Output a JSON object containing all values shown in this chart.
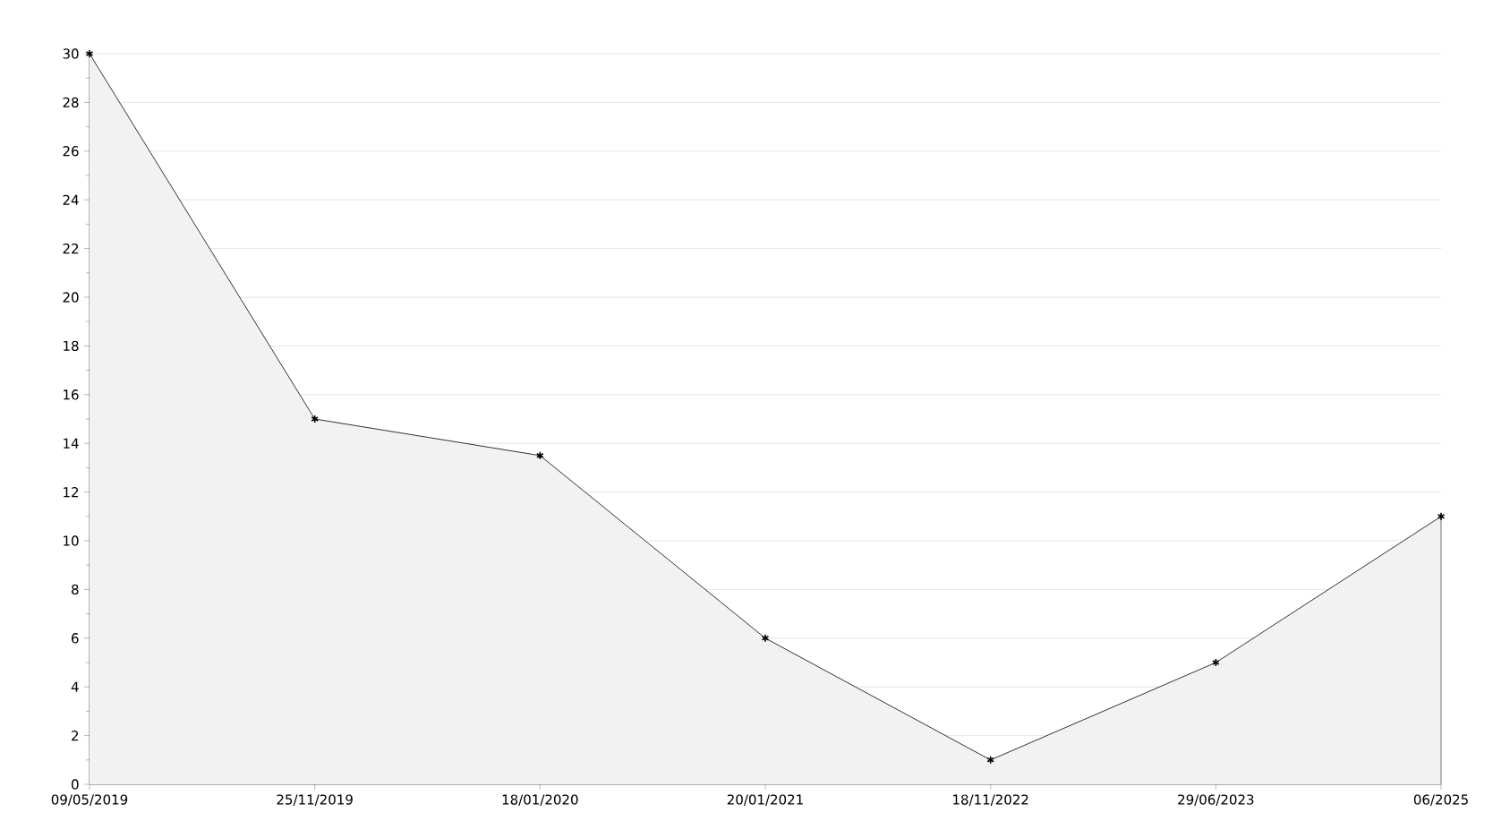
{
  "chart_data": {
    "type": "area",
    "categories": [
      "09/05/2019",
      "25/11/2019",
      "18/01/2020",
      "20/01/2021",
      "18/11/2022",
      "29/06/2023",
      "06/2025"
    ],
    "series": [
      {
        "color": "#000000",
        "values": [
          30,
          15,
          13.5,
          6,
          1,
          5,
          11
        ]
      }
    ],
    "ylim": [
      0,
      30
    ],
    "yticks": [
      0,
      2,
      4,
      6,
      8,
      10,
      12,
      14,
      16,
      18,
      20,
      22,
      24,
      26,
      28,
      30
    ],
    "grid": "y",
    "marker": "cross",
    "line_style": "solid"
  }
}
